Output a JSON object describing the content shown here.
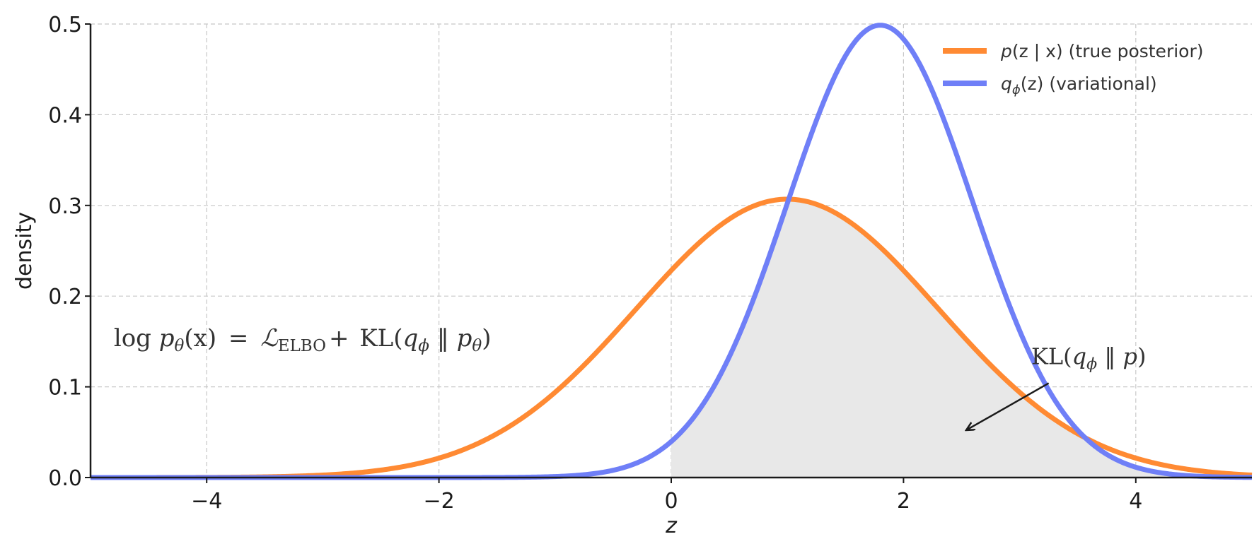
{
  "colors": {
    "posterior": "#ff8a33",
    "variational": "#6f7ff7",
    "fill": "#e8e8e8",
    "grid": "#c8c8c8",
    "axis": "#1a1a1a",
    "text": "#333333"
  },
  "chart_data": {
    "type": "line",
    "title": "",
    "xlabel": "z",
    "ylabel": "density",
    "xlim": [
      -5,
      5
    ],
    "ylim": [
      0,
      0.5
    ],
    "xticks": [
      -4,
      -2,
      0,
      2,
      4
    ],
    "xtick_labels": [
      "−4",
      "−2",
      "0",
      "2",
      "4"
    ],
    "yticks": [
      0.0,
      0.1,
      0.2,
      0.3,
      0.4,
      0.5
    ],
    "ytick_labels": [
      "0.0",
      "0.1",
      "0.2",
      "0.3",
      "0.4",
      "0.5"
    ],
    "grid": true,
    "legend_position": "top-right",
    "series": [
      {
        "name": "p(z | x)  (true posterior)",
        "legend_parts": {
          "main": "p",
          "rest": "(z | x)  (true posterior)"
        },
        "color": "#ff8a33",
        "distribution": "normal",
        "mean": 1.0,
        "std": 1.3
      },
      {
        "name": "q_ϕ(z)  (variational)",
        "legend_parts": {
          "main": "q",
          "sub": "ϕ",
          "rest": "(z)  (variational)"
        },
        "color": "#6f7ff7",
        "distribution": "normal",
        "mean": 1.8,
        "std": 0.8
      }
    ],
    "shaded_region": {
      "description": "min of the two densities for z ≥ 0",
      "x_start": 0,
      "x_end": 5,
      "color": "#e8e8e8"
    },
    "annotations": [
      {
        "id": "equation",
        "parts": {
          "log": "log",
          "p": "p",
          "theta": "θ",
          "x": "(x)",
          "eq": "=",
          "L": "ℒ",
          "elbo": "ELBO",
          "plus": "+",
          "kl": "KL(",
          "q": "q",
          "phi": "ϕ",
          "par": " ‖ ",
          "p2": "p",
          "theta2": "θ",
          "close": ")"
        },
        "x": -4.8,
        "y": 0.145
      },
      {
        "id": "kl-label",
        "parts": {
          "kl": "KL(",
          "q": "q",
          "phi": "ϕ",
          "par": " ‖ ",
          "p": "p",
          "close": ")"
        },
        "x": 3.1,
        "y": 0.125,
        "arrow_from": [
          3.25,
          0.104
        ],
        "arrow_to": [
          2.55,
          0.053
        ]
      }
    ]
  }
}
